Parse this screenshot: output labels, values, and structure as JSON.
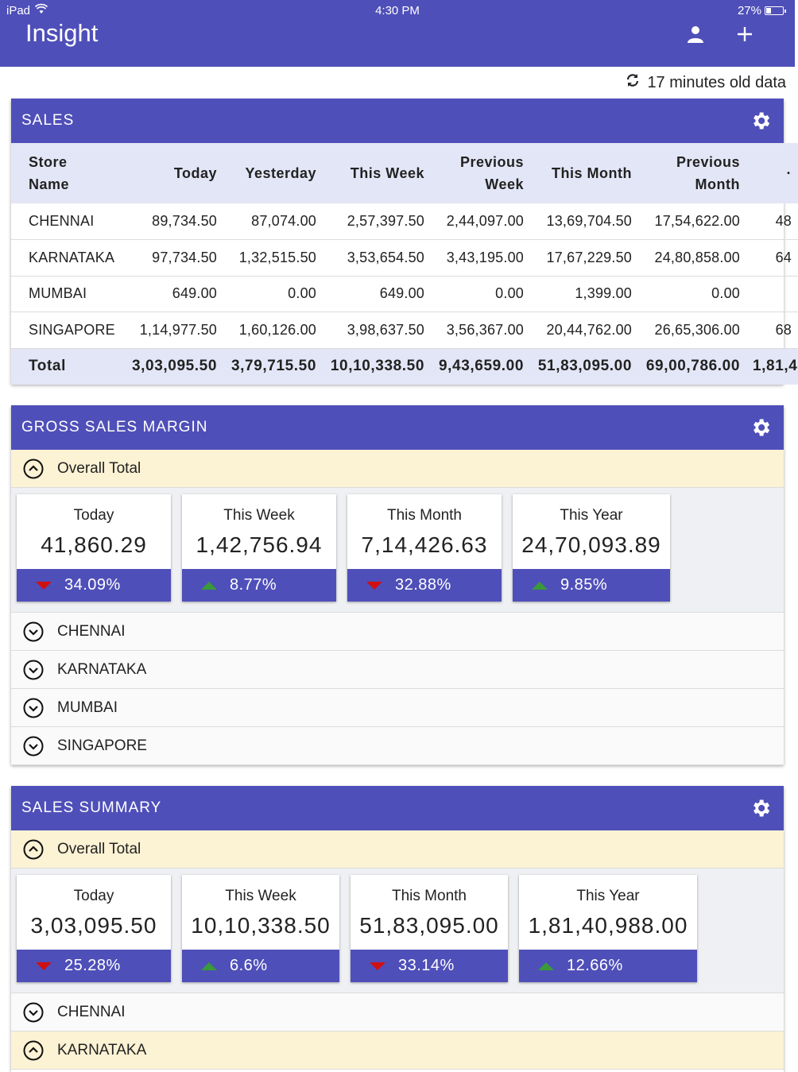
{
  "status_bar": {
    "device": "iPad",
    "time": "4:30 PM",
    "battery": "27%"
  },
  "app": {
    "title": "Insight",
    "icons": [
      "user-icon",
      "plus-icon"
    ]
  },
  "refresh": {
    "text": "17 minutes old data",
    "icon": "refresh-icon"
  },
  "sales": {
    "title": "SALES",
    "columns": [
      {
        "l1": "Store",
        "l2": "Name"
      },
      {
        "l1": "Today",
        "l2": ""
      },
      {
        "l1": "Yesterday",
        "l2": ""
      },
      {
        "l1": "This Week",
        "l2": ""
      },
      {
        "l1": "Previous",
        "l2": "Week"
      },
      {
        "l1": "This Month",
        "l2": ""
      },
      {
        "l1": "Previous",
        "l2": "Month"
      },
      {
        "l1": "·",
        "l2": ""
      }
    ],
    "rows": [
      [
        "CHENNAI",
        "89,734.50",
        "87,074.00",
        "2,57,397.50",
        "2,44,097.00",
        "13,69,704.50",
        "17,54,622.00",
        "48"
      ],
      [
        "KARNATAKA",
        "97,734.50",
        "1,32,515.50",
        "3,53,654.50",
        "3,43,195.00",
        "17,67,229.50",
        "24,80,858.00",
        "64"
      ],
      [
        "MUMBAI",
        "649.00",
        "0.00",
        "649.00",
        "0.00",
        "1,399.00",
        "0.00",
        ""
      ],
      [
        "SINGAPORE",
        "1,14,977.50",
        "1,60,126.00",
        "3,98,637.50",
        "3,56,367.00",
        "20,44,762.00",
        "26,65,306.00",
        "68"
      ]
    ],
    "total": [
      "Total",
      "3,03,095.50",
      "3,79,715.50",
      "10,10,338.50",
      "9,43,659.00",
      "51,83,095.00",
      "69,00,786.00",
      "1,81,4"
    ]
  },
  "gross_margin": {
    "title": "GROSS SALES MARGIN",
    "overall_label": "Overall Total",
    "tiles": [
      {
        "label": "Today",
        "value": "41,860.29",
        "change": "34.09%",
        "trend": "down"
      },
      {
        "label": "This Week",
        "value": "1,42,756.94",
        "change": "8.77%",
        "trend": "up"
      },
      {
        "label": "This Month",
        "value": "7,14,426.63",
        "change": "32.88%",
        "trend": "down"
      },
      {
        "label": "This Year",
        "value": "24,70,093.89",
        "change": "9.85%",
        "trend": "up"
      }
    ],
    "groups": [
      "CHENNAI",
      "KARNATAKA",
      "MUMBAI",
      "SINGAPORE"
    ]
  },
  "sales_summary": {
    "title": "SALES SUMMARY",
    "overall_label": "Overall Total",
    "tiles": [
      {
        "label": "Today",
        "value": "3,03,095.50",
        "change": "25.28%",
        "trend": "down"
      },
      {
        "label": "This Week",
        "value": "10,10,338.50",
        "change": "6.6%",
        "trend": "up"
      },
      {
        "label": "This Month",
        "value": "51,83,095.00",
        "change": "33.14%",
        "trend": "down"
      },
      {
        "label": "This Year",
        "value": "1,81,40,988.00",
        "change": "12.66%",
        "trend": "up"
      }
    ],
    "groups": [
      "CHENNAI",
      "KARNATAKA"
    ]
  },
  "colors": {
    "primary": "#4f4fb9",
    "header_row": "#e3e6f6",
    "expanded": "#fcf2d4",
    "down": "#d11010",
    "up": "#3a9a3a"
  }
}
